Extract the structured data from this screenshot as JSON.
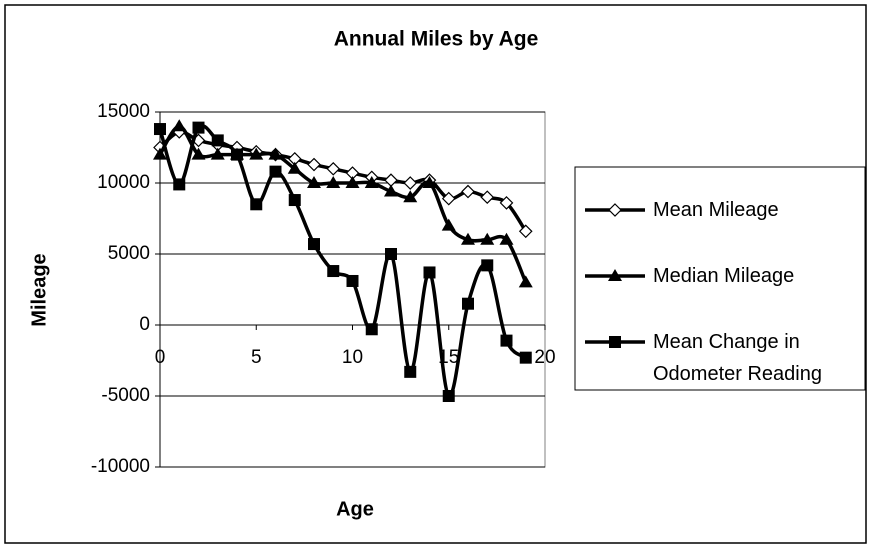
{
  "chart_data": {
    "type": "line",
    "title": "Annual Miles by Age",
    "xlabel": "Age",
    "ylabel": "Mileage",
    "x": [
      0,
      1,
      2,
      3,
      4,
      5,
      6,
      7,
      8,
      9,
      10,
      11,
      12,
      13,
      14,
      15,
      16,
      17,
      18,
      19
    ],
    "series": [
      {
        "name": "Mean Mileage",
        "color": "#000000",
        "marker": "diamond",
        "values": [
          12500,
          13600,
          13000,
          12700,
          12500,
          12200,
          12000,
          11700,
          11300,
          11000,
          10700,
          10400,
          10200,
          10000,
          10200,
          8900,
          9400,
          9000,
          8600,
          6600
        ]
      },
      {
        "name": "Median Mileage",
        "color": "#000000",
        "marker": "triangle",
        "values": [
          12000,
          14000,
          12000,
          12000,
          12000,
          12000,
          12000,
          11000,
          10000,
          10000,
          10000,
          10000,
          9400,
          9000,
          10000,
          7000,
          6000,
          6000,
          6000,
          3000
        ]
      },
      {
        "name": "Mean Change in Odometer Reading",
        "color": "#000000",
        "marker": "square",
        "values": [
          13800,
          9900,
          13900,
          13000,
          12000,
          8500,
          10800,
          8800,
          5700,
          3800,
          3100,
          -300,
          5000,
          -3300,
          3700,
          -5000,
          1500,
          4200,
          -1100,
          -2300
        ]
      }
    ],
    "xlim": [
      0,
      20
    ],
    "xticks": [
      0,
      5,
      10,
      15,
      20
    ],
    "ylim": [
      -10000,
      15000
    ],
    "yticks": [
      -10000,
      -5000,
      0,
      5000,
      10000,
      15000
    ],
    "grid": true,
    "legend": "right"
  }
}
